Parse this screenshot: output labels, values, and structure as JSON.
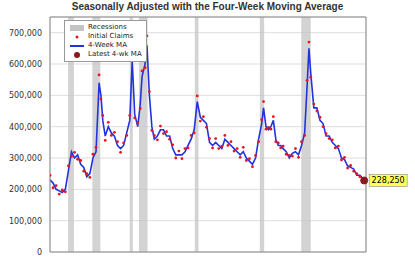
{
  "chart_data": {
    "type": "line",
    "title": "Seasonally Adjusted with the Four-Week Moving Average",
    "x": [
      1967.0,
      1967.5,
      1968.0,
      1968.5,
      1969.0,
      1969.5,
      1970.0,
      1970.5,
      1971.0,
      1971.5,
      1972.0,
      1972.5,
      1973.0,
      1973.5,
      1974.0,
      1974.5,
      1975.0,
      1975.3,
      1975.6,
      1976.0,
      1976.5,
      1977.0,
      1977.5,
      1978.0,
      1978.5,
      1979.0,
      1979.5,
      1980.0,
      1980.4,
      1980.8,
      1981.3,
      1981.7,
      1982.0,
      1982.5,
      1982.8,
      1983.2,
      1983.6,
      1984.0,
      1984.5,
      1985.0,
      1985.5,
      1986.0,
      1986.5,
      1987.0,
      1987.5,
      1988.0,
      1988.5,
      1989.0,
      1989.5,
      1990.0,
      1990.5,
      1991.0,
      1991.5,
      1992.0,
      1992.5,
      1993.0,
      1993.5,
      1994.0,
      1994.5,
      1995.0,
      1995.5,
      1996.0,
      1996.5,
      1997.0,
      1997.5,
      1998.0,
      1998.5,
      1999.0,
      1999.5,
      2000.0,
      2000.5,
      2001.0,
      2001.5,
      2001.8,
      2002.2,
      2002.6,
      2003.0,
      2003.4,
      2003.8,
      2004.2,
      2004.6,
      2005.0,
      2005.5,
      2006.0,
      2006.5,
      2007.0,
      2007.5,
      2008.0,
      2008.5,
      2008.9,
      2009.2,
      2009.5,
      2010.0,
      2010.5,
      2011.0,
      2011.5,
      2012.0,
      2012.5,
      2013.0,
      2013.5,
      2014.0,
      2014.5,
      2015.0,
      2015.5,
      2016.0,
      2016.5,
      2017.0,
      2017.5,
      2018.0,
      2018.2
    ],
    "series": [
      {
        "name": "Initial Claims",
        "color": "#e8141e",
        "type": "scatter",
        "marker": "circle",
        "values": [
          245000,
          205000,
          212000,
          185000,
          198000,
          192000,
          275000,
          305000,
          318000,
          296000,
          292000,
          258000,
          250000,
          238000,
          312000,
          334000,
          565000,
          488000,
          436000,
          356000,
          414000,
          372000,
          382000,
          352000,
          318000,
          348000,
          372000,
          436000,
          632000,
          428000,
          412000,
          458000,
          578000,
          588000,
          690000,
          512000,
          388000,
          372000,
          358000,
          402000,
          378000,
          384000,
          360000,
          342000,
          300000,
          322000,
          298000,
          330000,
          332000,
          372000,
          380000,
          498000,
          418000,
          432000,
          398000,
          362000,
          332000,
          362000,
          330000,
          338000,
          372000,
          340000,
          352000,
          322000,
          330000,
          302000,
          334000,
          292000,
          298000,
          272000,
          308000,
          352000,
          422000,
          480000,
          392000,
          398000,
          392000,
          432000,
          352000,
          348000,
          332000,
          338000,
          312000,
          308000,
          306000,
          330000,
          302000,
          352000,
          372000,
          548000,
          670000,
          558000,
          472000,
          450000,
          430000,
          400000,
          378000,
          362000,
          358000,
          332000,
          338000,
          294000,
          302000,
          268000,
          276000,
          258000,
          250000,
          240000,
          230000,
          222000
        ]
      },
      {
        "name": "4-Week MA",
        "color": "#2233dd",
        "type": "line",
        "values": [
          230000,
          220000,
          200000,
          195000,
          190000,
          200000,
          260000,
          320000,
          300000,
          310000,
          280000,
          270000,
          240000,
          250000,
          300000,
          320000,
          540000,
          500000,
          420000,
          370000,
          400000,
          380000,
          370000,
          340000,
          330000,
          340000,
          380000,
          420000,
          610000,
          440000,
          400000,
          470000,
          560000,
          600000,
          660000,
          500000,
          400000,
          360000,
          370000,
          390000,
          390000,
          370000,
          370000,
          330000,
          310000,
          310000,
          310000,
          320000,
          340000,
          360000,
          390000,
          480000,
          430000,
          420000,
          410000,
          350000,
          340000,
          350000,
          340000,
          330000,
          360000,
          350000,
          340000,
          330000,
          320000,
          310000,
          320000,
          300000,
          290000,
          280000,
          300000,
          360000,
          410000,
          460000,
          400000,
          390000,
          400000,
          420000,
          360000,
          340000,
          340000,
          330000,
          320000,
          300000,
          315000,
          320000,
          310000,
          340000,
          380000,
          530000,
          650000,
          570000,
          460000,
          460000,
          420000,
          410000,
          370000,
          370000,
          350000,
          340000,
          330000,
          300000,
          295000,
          275000,
          270000,
          265000,
          245000,
          245000,
          235000,
          228250
        ]
      }
    ],
    "recessions": {
      "name": "Recessions",
      "color": "#c4c4c4",
      "ranges": [
        [
          1969.95,
          1970.9
        ],
        [
          1973.9,
          1975.2
        ],
        [
          1980.0,
          1980.5
        ],
        [
          1981.5,
          1982.9
        ],
        [
          1990.6,
          1991.2
        ],
        [
          2001.2,
          2001.9
        ],
        [
          2007.95,
          2009.5
        ]
      ]
    },
    "latest": {
      "name": "Latest 4-wk MA",
      "color": "#8b1a1a",
      "x": 2018.2,
      "value": 228250,
      "label": "228,250"
    },
    "xlim": [
      1967,
      2018.5
    ],
    "xticks": [
      1968,
      1970,
      1972,
      1974,
      1976,
      1978,
      1980,
      1982,
      1984,
      1986,
      1988,
      1990,
      1992,
      1994,
      1996,
      1998,
      2000,
      2002,
      2004,
      2006,
      2008,
      2010,
      2012,
      2014,
      2016,
      2018
    ],
    "ylim": [
      0,
      750000
    ],
    "yticks": [
      0,
      {
        "value": 100000,
        "label": "100,000"
      },
      {
        "value": 200000,
        "label": "200,000"
      },
      {
        "value": 300000,
        "label": "300,000"
      },
      {
        "value": 400000,
        "label": "400,000"
      },
      {
        "value": 500000,
        "label": "500,000"
      },
      {
        "value": 600000,
        "label": "600,000"
      },
      {
        "value": 700000,
        "label": "700,000"
      }
    ],
    "grid": true,
    "tick_labels": "y",
    "legend": "top-left"
  }
}
